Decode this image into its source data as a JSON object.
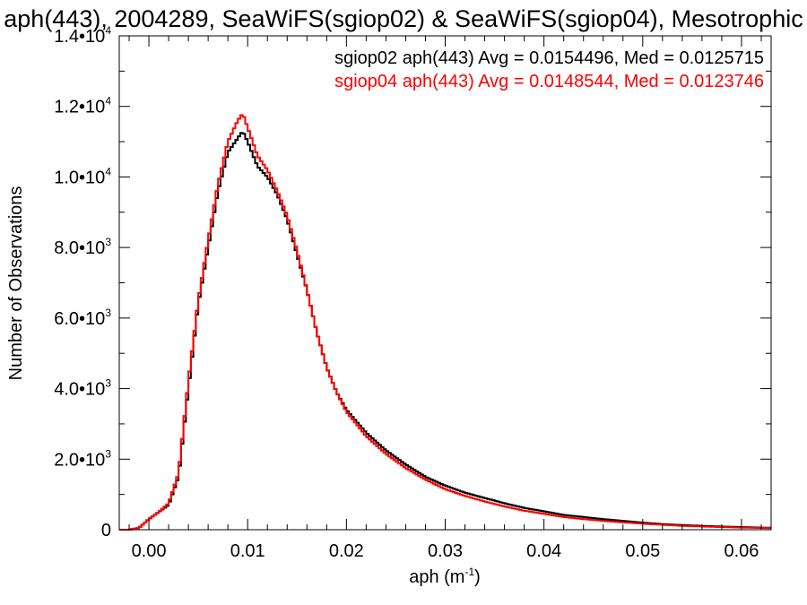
{
  "chart_data": {
    "type": "line",
    "title": "aph(443), 2004289, SeaWiFS(sgiop02) & SeaWiFS(sgiop04), Mesotrophic",
    "xlabel": "aph (m",
    "xlabel_sup": "-1",
    "xlabel_close": ")",
    "ylabel": "Number of Observations",
    "xlim": [
      -0.003,
      0.063
    ],
    "ylim": [
      0,
      14000
    ],
    "grid": false,
    "legend_position": "top-right",
    "x_ticks": [
      {
        "value": 0.0,
        "label": "0.00"
      },
      {
        "value": 0.01,
        "label": "0.01"
      },
      {
        "value": 0.02,
        "label": "0.02"
      },
      {
        "value": 0.03,
        "label": "0.03"
      },
      {
        "value": 0.04,
        "label": "0.04"
      },
      {
        "value": 0.05,
        "label": "0.05"
      },
      {
        "value": 0.06,
        "label": "0.06"
      }
    ],
    "y_ticks": [
      {
        "value": 0,
        "mant": "0",
        "exp": ""
      },
      {
        "value": 2000,
        "mant": "2.0•10",
        "exp": "3"
      },
      {
        "value": 4000,
        "mant": "4.0•10",
        "exp": "3"
      },
      {
        "value": 6000,
        "mant": "6.0•10",
        "exp": "3"
      },
      {
        "value": 8000,
        "mant": "8.0•10",
        "exp": "3"
      },
      {
        "value": 10000,
        "mant": "1.0•10",
        "exp": "4"
      },
      {
        "value": 12000,
        "mant": "1.2•10",
        "exp": "4"
      },
      {
        "value": 14000,
        "mant": "1.4•10",
        "exp": "4"
      }
    ],
    "series": [
      {
        "name": "sgiop02 aph(443) Avg = 0.0154496, Med = 0.0125715",
        "color": "#000000",
        "x": [
          -0.003,
          -0.002,
          -0.001,
          0.0,
          0.001,
          0.002,
          0.003,
          0.004,
          0.005,
          0.006,
          0.007,
          0.008,
          0.009,
          0.0095,
          0.01,
          0.011,
          0.012,
          0.013,
          0.014,
          0.015,
          0.016,
          0.017,
          0.018,
          0.019,
          0.02,
          0.022,
          0.024,
          0.026,
          0.028,
          0.03,
          0.032,
          0.034,
          0.036,
          0.038,
          0.04,
          0.042,
          0.044,
          0.046,
          0.048,
          0.05,
          0.052,
          0.054,
          0.056,
          0.058,
          0.06,
          0.062,
          0.063
        ],
        "y": [
          0,
          0,
          50,
          300,
          500,
          700,
          1500,
          4000,
          6400,
          8000,
          9600,
          10700,
          11100,
          11300,
          11000,
          10300,
          10000,
          9500,
          8800,
          7800,
          6800,
          5600,
          4600,
          3900,
          3400,
          2750,
          2250,
          1850,
          1500,
          1250,
          1050,
          900,
          750,
          620,
          520,
          420,
          360,
          300,
          250,
          200,
          160,
          130,
          110,
          90,
          75,
          60,
          55
        ]
      },
      {
        "name": "sgiop04 aph(443) Avg = 0.0148544, Med = 0.0123746",
        "color": "#ff0000",
        "x": [
          -0.003,
          -0.002,
          -0.001,
          0.0,
          0.001,
          0.002,
          0.003,
          0.004,
          0.005,
          0.006,
          0.007,
          0.008,
          0.009,
          0.0095,
          0.01,
          0.011,
          0.012,
          0.013,
          0.014,
          0.015,
          0.016,
          0.017,
          0.018,
          0.019,
          0.02,
          0.022,
          0.024,
          0.026,
          0.028,
          0.03,
          0.032,
          0.034,
          0.036,
          0.038,
          0.04,
          0.042,
          0.044,
          0.046,
          0.048,
          0.05,
          0.052,
          0.054,
          0.056,
          0.058,
          0.06,
          0.062,
          0.063
        ],
        "y": [
          0,
          0,
          50,
          300,
          500,
          750,
          1600,
          4200,
          6500,
          8200,
          9800,
          11000,
          11600,
          11800,
          11400,
          10600,
          10200,
          9600,
          8900,
          7900,
          6800,
          5600,
          4600,
          3900,
          3350,
          2650,
          2150,
          1750,
          1420,
          1150,
          960,
          800,
          660,
          540,
          450,
          360,
          300,
          250,
          210,
          170,
          140,
          110,
          90,
          75,
          60,
          50,
          45
        ]
      }
    ]
  }
}
